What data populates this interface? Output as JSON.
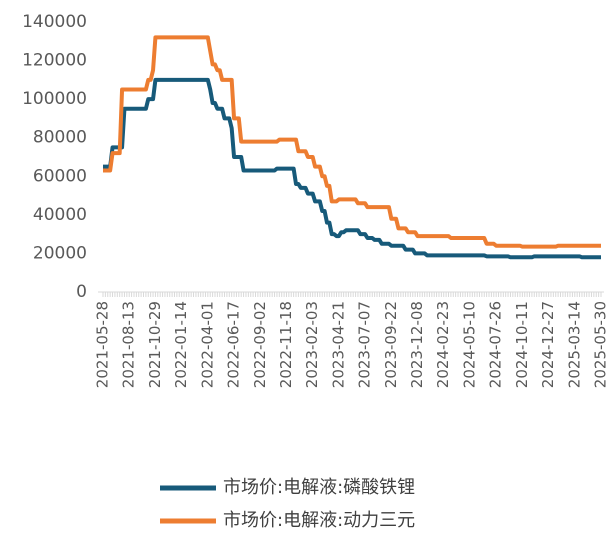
{
  "chart_data": {
    "type": "line",
    "categories": [
      "2021-05-28",
      null,
      null,
      null,
      null,
      null,
      null,
      null,
      null,
      null,
      null,
      "2021-08-13",
      null,
      null,
      null,
      null,
      null,
      null,
      null,
      null,
      null,
      null,
      "2021-10-29",
      null,
      null,
      null,
      null,
      null,
      null,
      null,
      null,
      null,
      null,
      "2022-01-14",
      null,
      null,
      null,
      null,
      null,
      null,
      null,
      null,
      null,
      null,
      "2022-04-01",
      null,
      null,
      null,
      null,
      null,
      null,
      null,
      null,
      null,
      null,
      "2022-06-17",
      null,
      null,
      null,
      null,
      null,
      null,
      null,
      null,
      null,
      null,
      "2022-09-02",
      null,
      null,
      null,
      null,
      null,
      null,
      null,
      null,
      null,
      null,
      "2022-11-18",
      null,
      null,
      null,
      null,
      null,
      null,
      null,
      null,
      null,
      null,
      "2023-02-03",
      null,
      null,
      null,
      null,
      null,
      null,
      null,
      null,
      null,
      null,
      "2023-04-21",
      null,
      null,
      null,
      null,
      null,
      null,
      null,
      null,
      null,
      null,
      "2023-07-07",
      null,
      null,
      null,
      null,
      null,
      null,
      null,
      null,
      null,
      null,
      "2023-09-22",
      null,
      null,
      null,
      null,
      null,
      null,
      null,
      null,
      null,
      null,
      "2023-12-08",
      null,
      null,
      null,
      null,
      null,
      null,
      null,
      null,
      null,
      null,
      "2024-02-23",
      null,
      null,
      null,
      null,
      null,
      null,
      null,
      null,
      null,
      null,
      "2024-05-10",
      null,
      null,
      null,
      null,
      null,
      null,
      null,
      null,
      null,
      null,
      "2024-07-26",
      null,
      null,
      null,
      null,
      null,
      null,
      null,
      null,
      null,
      null,
      "2024-10-11",
      null,
      null,
      null,
      null,
      null,
      null,
      null,
      null,
      null,
      null,
      "2024-12-27",
      null,
      null,
      null,
      null,
      null,
      null,
      null,
      null,
      null,
      null,
      "2025-03-14",
      null,
      null,
      null,
      null,
      null,
      null,
      null,
      null,
      null,
      null,
      "2025-05-30"
    ],
    "series": [
      {
        "name": "市场价:电解液:磷酸铁锂",
        "color": "#175a7a",
        "values": [
          65000,
          65000,
          65000,
          65000,
          75000,
          75000,
          75000,
          75000,
          75000,
          95000,
          95000,
          95000,
          95000,
          95000,
          95000,
          95000,
          95000,
          95000,
          95000,
          100000,
          100000,
          100000,
          110000,
          110000,
          110000,
          110000,
          110000,
          110000,
          110000,
          110000,
          110000,
          110000,
          110000,
          110000,
          110000,
          110000,
          110000,
          110000,
          110000,
          110000,
          110000,
          110000,
          110000,
          110000,
          110000,
          105000,
          98000,
          98000,
          95000,
          95000,
          95000,
          90000,
          90000,
          90000,
          85000,
          70000,
          70000,
          70000,
          70000,
          63000,
          63000,
          63000,
          63000,
          63000,
          63000,
          63000,
          63000,
          63000,
          63000,
          63000,
          63000,
          63000,
          63000,
          64000,
          64000,
          64000,
          64000,
          64000,
          64000,
          64000,
          64000,
          56000,
          56000,
          54000,
          54000,
          54000,
          51000,
          51000,
          51000,
          47000,
          47000,
          47000,
          42000,
          42000,
          36000,
          36000,
          30000,
          30000,
          29000,
          29000,
          31000,
          31000,
          32000,
          32000,
          32000,
          32000,
          32000,
          32000,
          30000,
          30000,
          30000,
          28000,
          28000,
          28000,
          27000,
          27000,
          27000,
          25000,
          25000,
          25000,
          25000,
          24000,
          24000,
          24000,
          24000,
          24000,
          24000,
          22000,
          22000,
          22000,
          22000,
          20000,
          20000,
          20000,
          20000,
          20000,
          19000,
          19000,
          19000,
          19000,
          19000,
          19000,
          19000,
          19000,
          19000,
          19000,
          19000,
          19000,
          19000,
          19000,
          19000,
          19000,
          19000,
          19000,
          19000,
          19000,
          19000,
          19000,
          19000,
          19000,
          19000,
          18500,
          18500,
          18500,
          18500,
          18500,
          18500,
          18500,
          18500,
          18500,
          18500,
          18000,
          18000,
          18000,
          18000,
          18000,
          18000,
          18000,
          18000,
          18000,
          18000,
          18500,
          18500,
          18500,
          18500,
          18500,
          18500,
          18500,
          18500,
          18500,
          18500,
          18500,
          18500,
          18500,
          18500,
          18500,
          18500,
          18500,
          18500,
          18500,
          18500,
          18000,
          18000,
          18000,
          18000,
          18000,
          18000,
          18000,
          18000,
          18000
        ]
      },
      {
        "name": "市场价:电解液:动力三元",
        "color": "#ed7d31",
        "values": [
          63000,
          63000,
          63000,
          63000,
          72000,
          72000,
          72000,
          72000,
          105000,
          105000,
          105000,
          105000,
          105000,
          105000,
          105000,
          105000,
          105000,
          105000,
          105000,
          110000,
          110000,
          115000,
          132000,
          132000,
          132000,
          132000,
          132000,
          132000,
          132000,
          132000,
          132000,
          132000,
          132000,
          132000,
          132000,
          132000,
          132000,
          132000,
          132000,
          132000,
          132000,
          132000,
          132000,
          132000,
          132000,
          125000,
          118000,
          118000,
          115000,
          115000,
          110000,
          110000,
          110000,
          110000,
          110000,
          90000,
          90000,
          90000,
          78000,
          78000,
          78000,
          78000,
          78000,
          78000,
          78000,
          78000,
          78000,
          78000,
          78000,
          78000,
          78000,
          78000,
          78000,
          78000,
          79000,
          79000,
          79000,
          79000,
          79000,
          79000,
          79000,
          79000,
          73000,
          73000,
          73000,
          73000,
          70000,
          70000,
          70000,
          65000,
          65000,
          65000,
          60000,
          60000,
          55000,
          55000,
          47000,
          47000,
          47000,
          48000,
          48000,
          48000,
          48000,
          48000,
          48000,
          48000,
          48000,
          46000,
          46000,
          46000,
          46000,
          44000,
          44000,
          44000,
          44000,
          44000,
          44000,
          44000,
          44000,
          44000,
          44000,
          38000,
          38000,
          38000,
          33000,
          33000,
          33000,
          33000,
          31000,
          31000,
          31000,
          31000,
          29000,
          29000,
          29000,
          29000,
          29000,
          29000,
          29000,
          29000,
          29000,
          29000,
          29000,
          29000,
          29000,
          29000,
          28000,
          28000,
          28000,
          28000,
          28000,
          28000,
          28000,
          28000,
          28000,
          28000,
          28000,
          28000,
          28000,
          28000,
          28000,
          25000,
          25000,
          25000,
          25000,
          24000,
          24000,
          24000,
          24000,
          24000,
          24000,
          24000,
          24000,
          24000,
          24000,
          24000,
          23500,
          23500,
          23500,
          23500,
          23500,
          23500,
          23500,
          23500,
          23500,
          23500,
          23500,
          23500,
          23500,
          23500,
          23500,
          24000,
          24000,
          24000,
          24000,
          24000,
          24000,
          24000,
          24000,
          24000,
          24000,
          24000,
          24000,
          24000,
          24000,
          24000,
          24000,
          24000,
          24000,
          24000
        ]
      }
    ],
    "ylim": [
      0,
      140000
    ],
    "yticks": [
      0,
      20000,
      40000,
      60000,
      80000,
      100000,
      120000,
      140000
    ]
  }
}
